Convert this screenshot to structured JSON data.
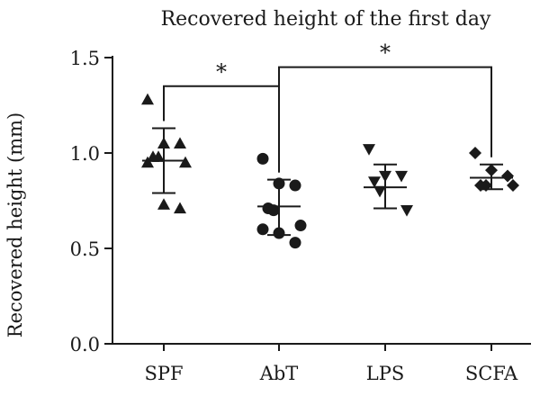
{
  "chart_data": {
    "type": "scatter",
    "title": "Recovered height of the first day",
    "xlabel": "",
    "ylabel": "Recovered height (mm)",
    "ylim": [
      0.0,
      1.5
    ],
    "yticks": [
      "0.0",
      "0.5",
      "1.0",
      "1.5"
    ],
    "categories": [
      "SPF",
      "AbT",
      "LPS",
      "SCFA"
    ],
    "grid": false,
    "markers": [
      "triangle-up",
      "circle",
      "triangle-down",
      "diamond"
    ],
    "series": [
      {
        "category": "SPF",
        "points": [
          1.28,
          1.05,
          1.05,
          0.98,
          0.98,
          0.95,
          0.95,
          0.73,
          0.71
        ],
        "mean": 0.96,
        "sd_upper": 1.13,
        "sd_lower": 0.79
      },
      {
        "category": "AbT",
        "points": [
          0.97,
          0.84,
          0.83,
          0.71,
          0.7,
          0.62,
          0.6,
          0.58,
          0.53
        ],
        "mean": 0.72,
        "sd_upper": 0.86,
        "sd_lower": 0.57
      },
      {
        "category": "LPS",
        "points": [
          1.02,
          0.88,
          0.88,
          0.85,
          0.8,
          0.7
        ],
        "mean": 0.82,
        "sd_upper": 0.94,
        "sd_lower": 0.71
      },
      {
        "category": "SCFA",
        "points": [
          1.0,
          0.91,
          0.88,
          0.83,
          0.83,
          0.83
        ],
        "mean": 0.87,
        "sd_upper": 0.94,
        "sd_lower": 0.81
      }
    ],
    "annotations": [
      {
        "from": "SPF",
        "to": "AbT",
        "label": "*",
        "y": 1.35
      },
      {
        "from": "AbT",
        "to": "SCFA",
        "label": "*",
        "y": 1.45
      }
    ]
  }
}
